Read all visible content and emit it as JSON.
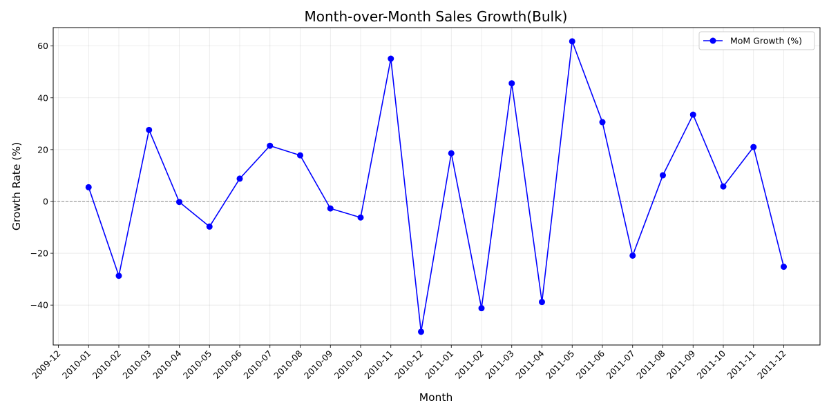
{
  "chart_data": {
    "type": "line",
    "title": "Month-over-Month Sales Growth(Bulk)",
    "xlabel": "Month",
    "ylabel": "Growth Rate (%)",
    "x_ticks": [
      "2009-12",
      "2010-01",
      "2010-02",
      "2010-03",
      "2010-04",
      "2010-05",
      "2010-06",
      "2010-07",
      "2010-08",
      "2010-09",
      "2010-10",
      "2010-11",
      "2010-12",
      "2011-01",
      "2011-02",
      "2011-03",
      "2011-04",
      "2011-05",
      "2011-06",
      "2011-07",
      "2011-08",
      "2011-09",
      "2011-10",
      "2011-11",
      "2011-12"
    ],
    "x": [
      "2010-01",
      "2010-02",
      "2010-03",
      "2010-04",
      "2010-05",
      "2010-06",
      "2010-07",
      "2010-08",
      "2010-09",
      "2010-10",
      "2010-11",
      "2010-12",
      "2011-01",
      "2011-02",
      "2011-03",
      "2011-04",
      "2011-05",
      "2011-06",
      "2011-07",
      "2011-08",
      "2011-09",
      "2011-10",
      "2011-11",
      "2011-12"
    ],
    "series": [
      {
        "name": "MoM Growth (%)",
        "color": "#0000ff",
        "marker": "circle",
        "values": [
          5.5,
          -28.7,
          27.6,
          -0.2,
          -9.7,
          8.8,
          21.5,
          17.8,
          -2.7,
          -6.2,
          55.1,
          -50.3,
          18.6,
          -41.2,
          45.6,
          -38.8,
          61.8,
          30.6,
          -20.9,
          10.1,
          33.5,
          5.8,
          21.0,
          -25.2
        ]
      }
    ],
    "y_ticks": [
      -40,
      -20,
      0,
      20,
      40,
      60
    ],
    "ylim": [
      -55.4,
      67.1
    ],
    "reference_line": {
      "y": 0,
      "style": "dashed",
      "color": "#808080"
    },
    "grid": true,
    "legend_position": "top-right"
  }
}
